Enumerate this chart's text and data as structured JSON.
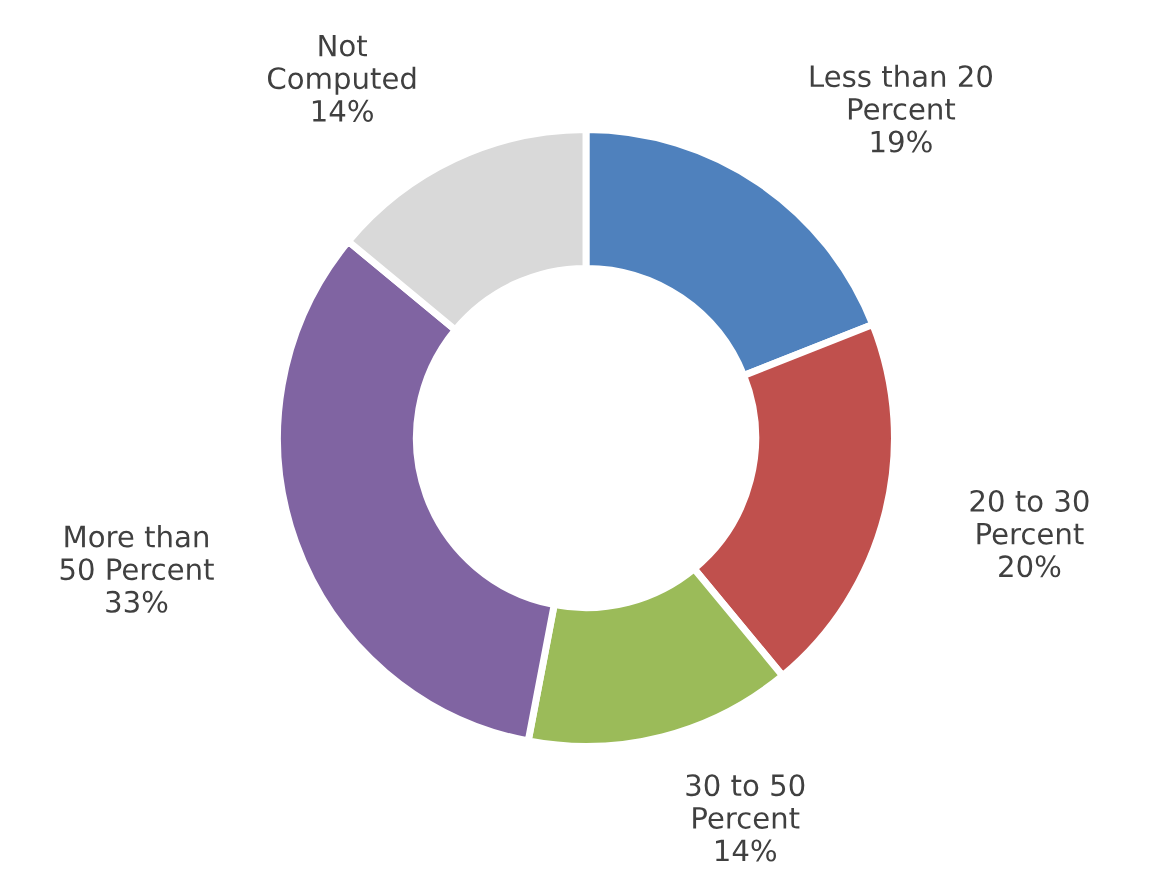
{
  "chart_data": {
    "type": "donut",
    "categories": [
      "Less than 20\nPercent",
      "20 to 30\nPercent",
      "30 to 50\nPercent",
      "More than\n50 Percent",
      "Not\nComputed"
    ],
    "values": [
      19,
      20,
      14,
      33,
      14
    ],
    "value_labels": [
      "19%",
      "20%",
      "14%",
      "33%",
      "14%"
    ],
    "colors": [
      "#4f81bd",
      "#c0504d",
      "#9bbb59",
      "#8064a2",
      "#d9d9d9"
    ]
  }
}
